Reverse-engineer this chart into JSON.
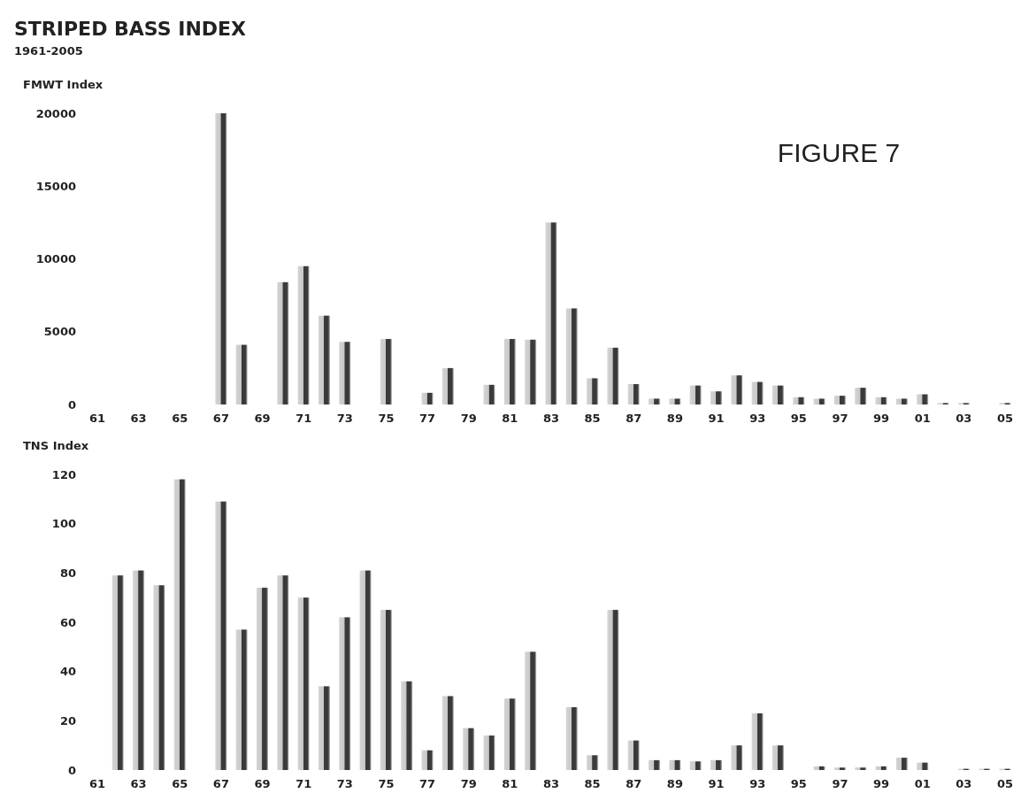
{
  "chart_data": [
    {
      "type": "bar",
      "title": "STRIPED BASS INDEX",
      "subtitle": "1961-2005",
      "ylabel": "FMWT Index",
      "annotations": [
        "FIGURE 7"
      ],
      "categories": [
        "61",
        null,
        "63",
        null,
        "65",
        null,
        "67",
        null,
        "69",
        null,
        "71",
        null,
        "73",
        null,
        "75",
        null,
        "77",
        null,
        "79",
        null,
        "81",
        null,
        "83",
        null,
        "85",
        null,
        "87",
        null,
        "89",
        null,
        "91",
        null,
        "93",
        null,
        "95",
        null,
        "97",
        null,
        "99",
        null,
        "01",
        null,
        "03",
        null,
        "05"
      ],
      "values": [
        null,
        null,
        null,
        null,
        null,
        null,
        20000,
        4100,
        null,
        8400,
        9500,
        6100,
        4300,
        null,
        4500,
        null,
        800,
        2500,
        null,
        1350,
        4500,
        4450,
        12500,
        6600,
        1800,
        3900,
        1400,
        400,
        400,
        1300,
        900,
        2000,
        1550,
        1300,
        500,
        400,
        600,
        1150,
        500,
        400,
        700,
        100,
        100,
        null,
        100
      ],
      "color": "#3a3a3a",
      "ylim": [
        0,
        20000
      ],
      "yticks": [
        0,
        5000,
        10000,
        15000,
        20000
      ],
      "grid": false
    },
    {
      "type": "bar",
      "ylabel": "TNS Index",
      "categories": [
        "61",
        null,
        "63",
        null,
        "65",
        null,
        "67",
        null,
        "69",
        null,
        "71",
        null,
        "73",
        null,
        "75",
        null,
        "77",
        null,
        "79",
        null,
        "81",
        null,
        "83",
        null,
        "85",
        null,
        "87",
        null,
        "89",
        null,
        "91",
        null,
        "93",
        null,
        "95",
        null,
        "97",
        null,
        "99",
        null,
        "01",
        null,
        "03",
        null,
        "05"
      ],
      "values": [
        null,
        79,
        81,
        75,
        118,
        null,
        109,
        57,
        74,
        79,
        70,
        34,
        62,
        81,
        65,
        36,
        8,
        30,
        17,
        14,
        29,
        48,
        null,
        25.5,
        6,
        65,
        12,
        4,
        4,
        3.5,
        4,
        10,
        23,
        10,
        null,
        1.5,
        1,
        1,
        1.5,
        5,
        3,
        null,
        0.5,
        0.5,
        0.5
      ],
      "color": "#3a3a3a",
      "ylim": [
        0,
        120
      ],
      "yticks": [
        0,
        20,
        40,
        60,
        80,
        100,
        120
      ],
      "grid": false
    }
  ]
}
